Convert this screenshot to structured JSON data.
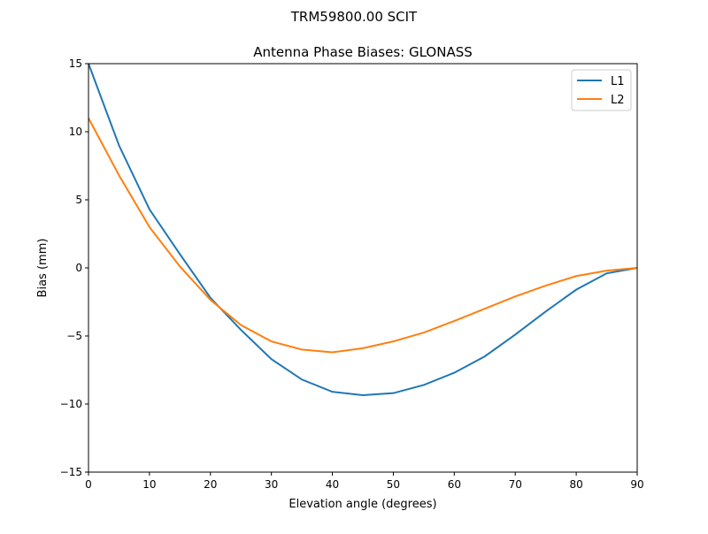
{
  "suptitle": "TRM59800.00     SCIT",
  "chart_data": {
    "type": "line",
    "title": "Antenna Phase Biases: GLONASS",
    "xlabel": "Elevation angle (degrees)",
    "ylabel": "Bias (mm)",
    "xlim": [
      0,
      90
    ],
    "ylim": [
      -15,
      15
    ],
    "xticks": [
      0,
      10,
      20,
      30,
      40,
      50,
      60,
      70,
      80,
      90
    ],
    "yticks": [
      -15,
      -10,
      -5,
      0,
      5,
      10,
      15
    ],
    "ytick_labels": [
      "−15",
      "−10",
      "−5",
      "0",
      "5",
      "10",
      "15"
    ],
    "grid": false,
    "legend_position": "top-right",
    "x": [
      0,
      5,
      10,
      15,
      20,
      25,
      30,
      35,
      40,
      45,
      50,
      55,
      60,
      65,
      70,
      75,
      80,
      85,
      90
    ],
    "series": [
      {
        "name": "L1",
        "color": "#1f77b4",
        "values": [
          15.0,
          9.0,
          4.3,
          1.0,
          -2.2,
          -4.55,
          -6.7,
          -8.2,
          -9.1,
          -9.35,
          -9.2,
          -8.6,
          -7.7,
          -6.5,
          -4.9,
          -3.2,
          -1.6,
          -0.4,
          0.0
        ]
      },
      {
        "name": "L2",
        "color": "#ff7f0e",
        "values": [
          11.0,
          6.8,
          3.0,
          0.1,
          -2.35,
          -4.2,
          -5.4,
          -6.0,
          -6.2,
          -5.9,
          -5.4,
          -4.75,
          -3.9,
          -3.0,
          -2.1,
          -1.3,
          -0.6,
          -0.2,
          0.0
        ]
      }
    ]
  }
}
